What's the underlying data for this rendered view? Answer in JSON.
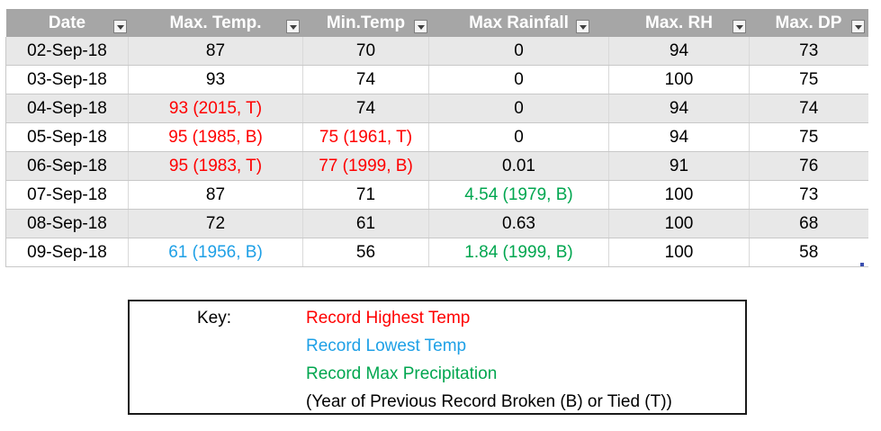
{
  "colors": {
    "header_bg": "#a6a6a6",
    "stripe": "#e8e8e8",
    "record_high": "#ff0000",
    "record_low": "#1ea0e6",
    "record_precip": "#00a64f",
    "text": "#000000"
  },
  "table": {
    "headers": [
      "Date",
      "Max. Temp.",
      "Min.Temp",
      "Max Rainfall",
      "Max. RH",
      "Max. DP"
    ],
    "rows": [
      {
        "date": "02-Sep-18",
        "max_temp": "87",
        "min_temp": "70",
        "max_rainfall": "0",
        "max_rh": "94",
        "max_dp": "73"
      },
      {
        "date": "03-Sep-18",
        "max_temp": "93",
        "min_temp": "74",
        "max_rainfall": "0",
        "max_rh": "100",
        "max_dp": "75"
      },
      {
        "date": "04-Sep-18",
        "max_temp": "93 (2015, T)",
        "min_temp": "74",
        "max_rainfall": "0",
        "max_rh": "94",
        "max_dp": "74"
      },
      {
        "date": "05-Sep-18",
        "max_temp": "95 (1985, B)",
        "min_temp": "75 (1961, T)",
        "max_rainfall": "0",
        "max_rh": "94",
        "max_dp": "75"
      },
      {
        "date": "06-Sep-18",
        "max_temp": "95 (1983, T)",
        "min_temp": "77 (1999, B)",
        "max_rainfall": "0.01",
        "max_rh": "91",
        "max_dp": "76"
      },
      {
        "date": "07-Sep-18",
        "max_temp": "87",
        "min_temp": "71",
        "max_rainfall": "4.54 (1979, B)",
        "max_rh": "100",
        "max_dp": "73"
      },
      {
        "date": "08-Sep-18",
        "max_temp": "72",
        "min_temp": "61",
        "max_rainfall": "0.63",
        "max_rh": "100",
        "max_dp": "68"
      },
      {
        "date": "09-Sep-18",
        "max_temp": "61 (1956, B)",
        "min_temp": "56",
        "max_rainfall": "1.84 (1999, B)",
        "max_rh": "100",
        "max_dp": "58"
      }
    ],
    "highlights": {
      "2.max_temp": "record_high",
      "3.max_temp": "record_high",
      "3.min_temp": "record_high",
      "4.max_temp": "record_high",
      "4.min_temp": "record_high",
      "5.max_rainfall": "record_precip",
      "7.max_temp": "record_low",
      "7.max_rainfall": "record_precip"
    }
  },
  "key": {
    "label": "Key:",
    "record_high": "Record Highest Temp",
    "record_low": "Record Lowest Temp",
    "record_precip": "Record Max Precipitation",
    "note": "(Year of Previous Record Broken (B) or Tied (T))"
  }
}
